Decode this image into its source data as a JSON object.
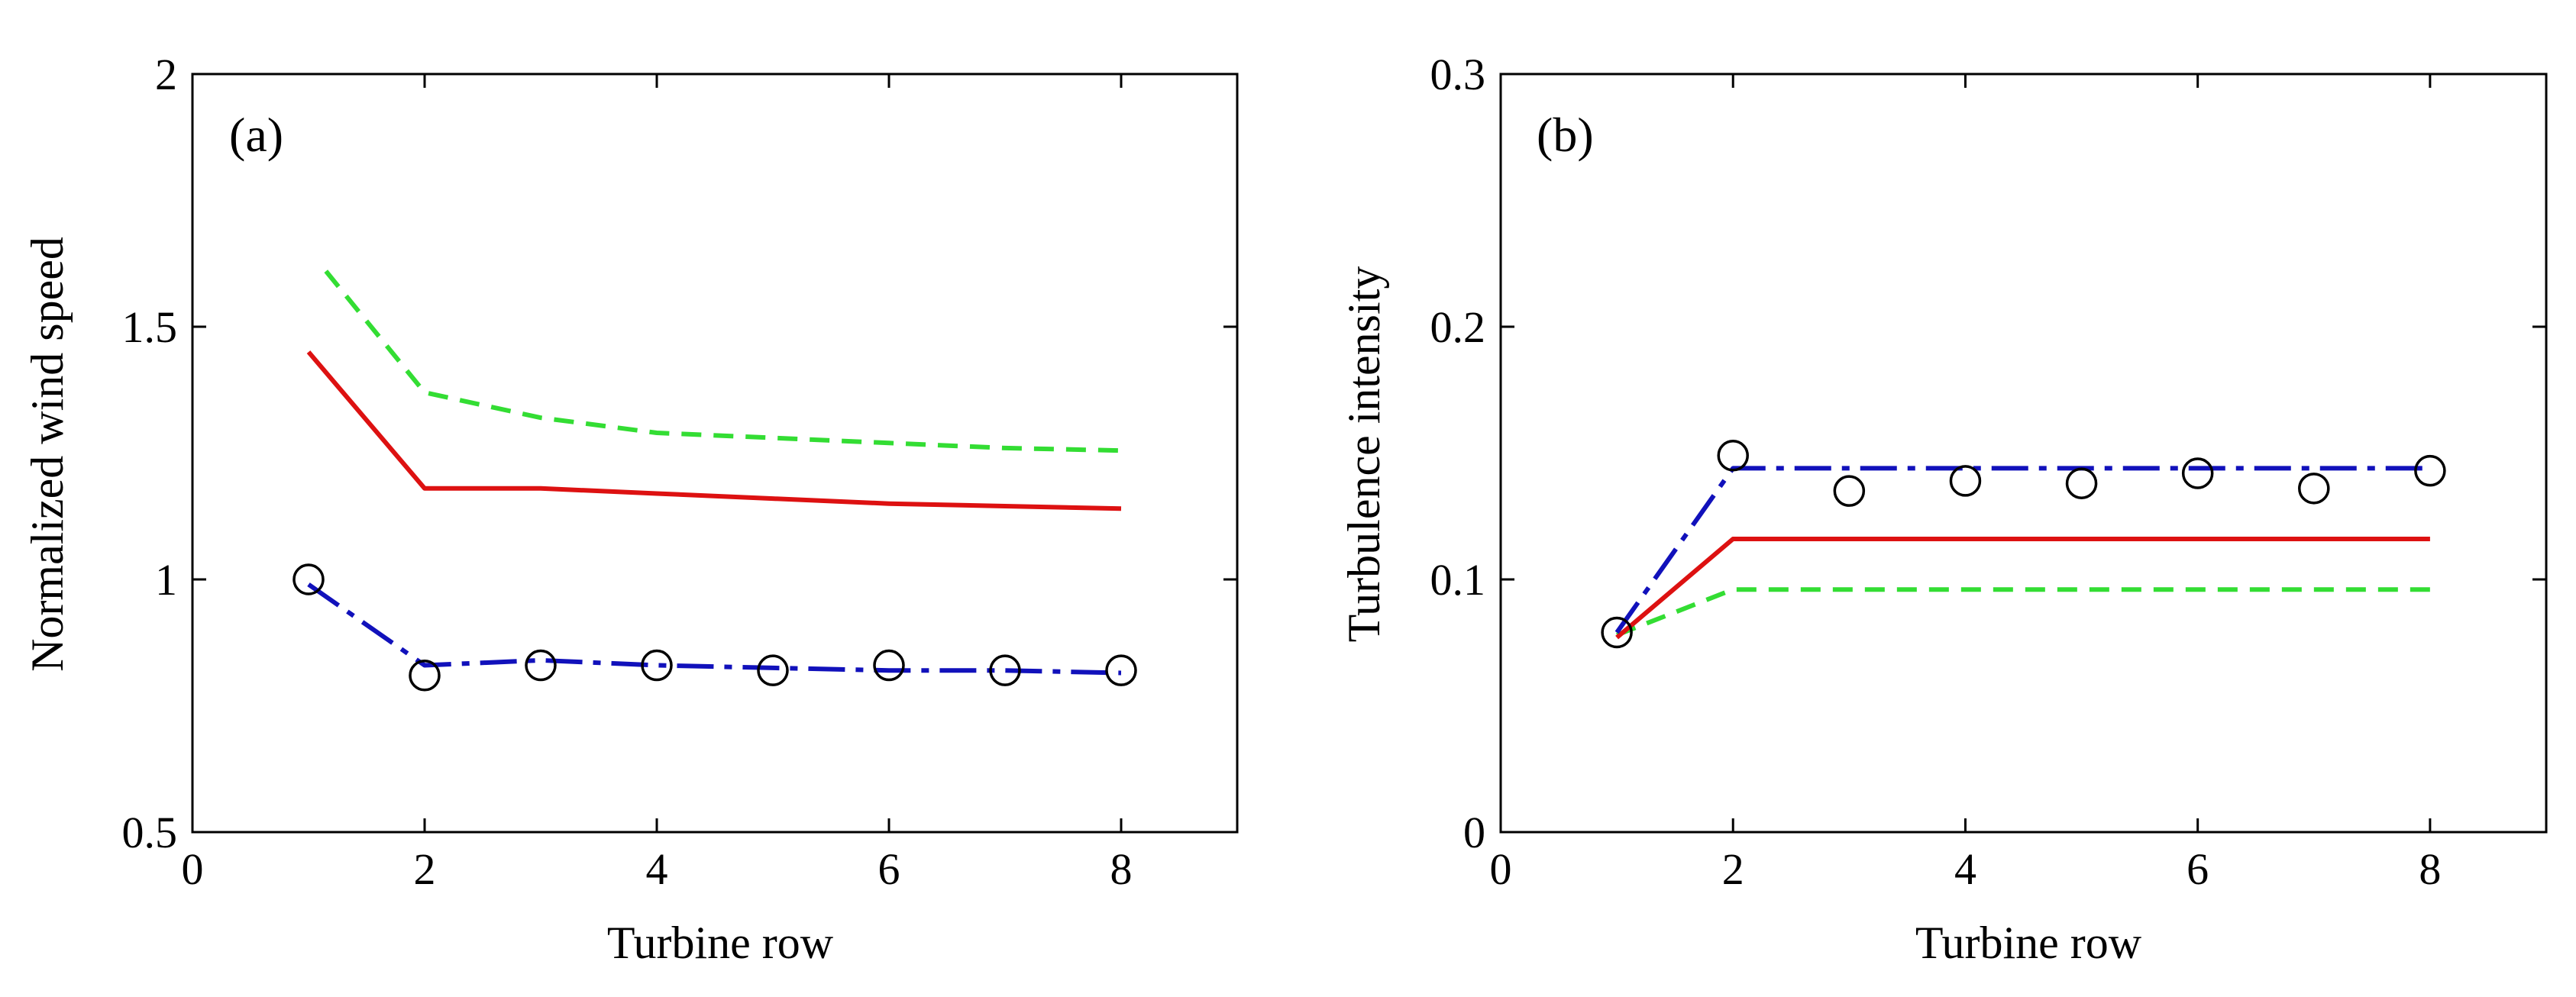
{
  "chart_data": [
    {
      "type": "line",
      "panel_label": "(a)",
      "xlabel": "Turbine row",
      "ylabel": "Normalized wind speed",
      "xlim": [
        0,
        9
      ],
      "ylim": [
        0.5,
        2
      ],
      "xticks": [
        0,
        2,
        4,
        6,
        8
      ],
      "xtick_labels": [
        "0",
        "2",
        "4",
        "6",
        "8"
      ],
      "yticks": [
        0.5,
        1,
        1.5,
        2
      ],
      "ytick_labels": [
        "0.5",
        "1",
        "1.5",
        "2"
      ],
      "grid": false,
      "series": [
        {
          "name": "green dashed",
          "style": "dashed",
          "color": "#33dd33",
          "markers": false,
          "x": [
            1.15,
            2,
            3,
            4,
            5,
            6,
            7,
            8
          ],
          "y": [
            1.61,
            1.37,
            1.32,
            1.29,
            1.28,
            1.27,
            1.26,
            1.255
          ]
        },
        {
          "name": "red solid",
          "style": "solid",
          "color": "#dd1111",
          "markers": false,
          "x": [
            1,
            2,
            3,
            4,
            5,
            6,
            7,
            8
          ],
          "y": [
            1.45,
            1.18,
            1.18,
            1.17,
            1.16,
            1.15,
            1.145,
            1.14
          ]
        },
        {
          "name": "blue dash-dot",
          "style": "dashdot",
          "color": "#1111bb",
          "markers": false,
          "x": [
            1,
            2,
            3,
            4,
            5,
            6,
            7,
            8
          ],
          "y": [
            0.99,
            0.83,
            0.84,
            0.83,
            0.825,
            0.82,
            0.82,
            0.815
          ]
        },
        {
          "name": "circles",
          "style": "none",
          "color": "#000000",
          "markers": true,
          "x": [
            1,
            2,
            3,
            4,
            5,
            6,
            7,
            8
          ],
          "y": [
            1.0,
            0.81,
            0.83,
            0.83,
            0.82,
            0.83,
            0.82,
            0.82
          ]
        }
      ]
    },
    {
      "type": "line",
      "panel_label": "(b)",
      "xlabel": "Turbine row",
      "ylabel": "Turbulence intensity",
      "xlim": [
        0,
        9
      ],
      "ylim": [
        0,
        0.3
      ],
      "xticks": [
        0,
        2,
        4,
        6,
        8
      ],
      "xtick_labels": [
        "0",
        "2",
        "4",
        "6",
        "8"
      ],
      "yticks": [
        0,
        0.1,
        0.2,
        0.3
      ],
      "ytick_labels": [
        "0",
        "0.1",
        "0.2",
        "0.3"
      ],
      "grid": false,
      "series": [
        {
          "name": "green dashed",
          "style": "dashed",
          "color": "#33dd33",
          "markers": false,
          "x": [
            1,
            2,
            3,
            4,
            5,
            6,
            7,
            8
          ],
          "y": [
            0.078,
            0.096,
            0.096,
            0.096,
            0.096,
            0.096,
            0.096,
            0.096
          ]
        },
        {
          "name": "red solid",
          "style": "solid",
          "color": "#dd1111",
          "markers": false,
          "x": [
            1,
            2,
            3,
            4,
            5,
            6,
            7,
            8
          ],
          "y": [
            0.077,
            0.116,
            0.116,
            0.116,
            0.116,
            0.116,
            0.116,
            0.116
          ]
        },
        {
          "name": "blue dash-dot",
          "style": "dashdot",
          "color": "#1111bb",
          "markers": false,
          "x": [
            1,
            2,
            3,
            4,
            5,
            6,
            7,
            8
          ],
          "y": [
            0.079,
            0.144,
            0.144,
            0.144,
            0.144,
            0.144,
            0.144,
            0.144
          ]
        },
        {
          "name": "circles",
          "style": "none",
          "color": "#000000",
          "markers": true,
          "x": [
            1,
            2,
            3,
            4,
            5,
            6,
            7,
            8
          ],
          "y": [
            0.079,
            0.149,
            0.135,
            0.139,
            0.138,
            0.142,
            0.136,
            0.143
          ]
        }
      ]
    }
  ]
}
